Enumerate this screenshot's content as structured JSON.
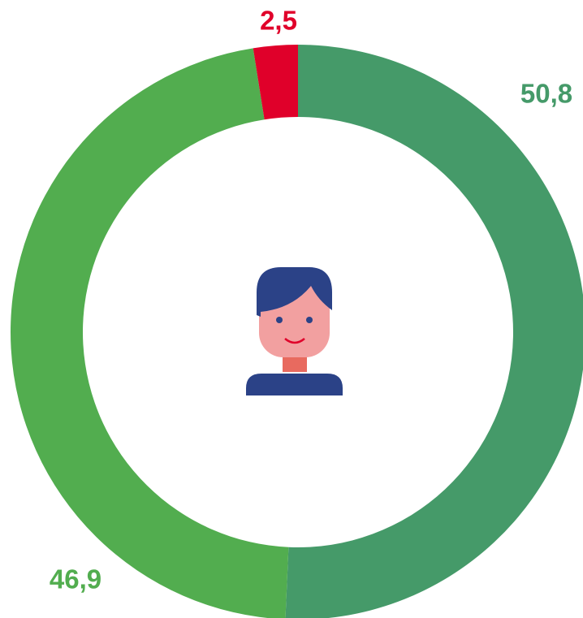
{
  "chart_data": {
    "type": "donut",
    "values": [
      50.8,
      46.9,
      2.5
    ],
    "value_labels": [
      "50,8",
      "46,9",
      "2,5"
    ],
    "colors": [
      "#459a69",
      "#52ad4f",
      "#e0002a"
    ]
  }
}
